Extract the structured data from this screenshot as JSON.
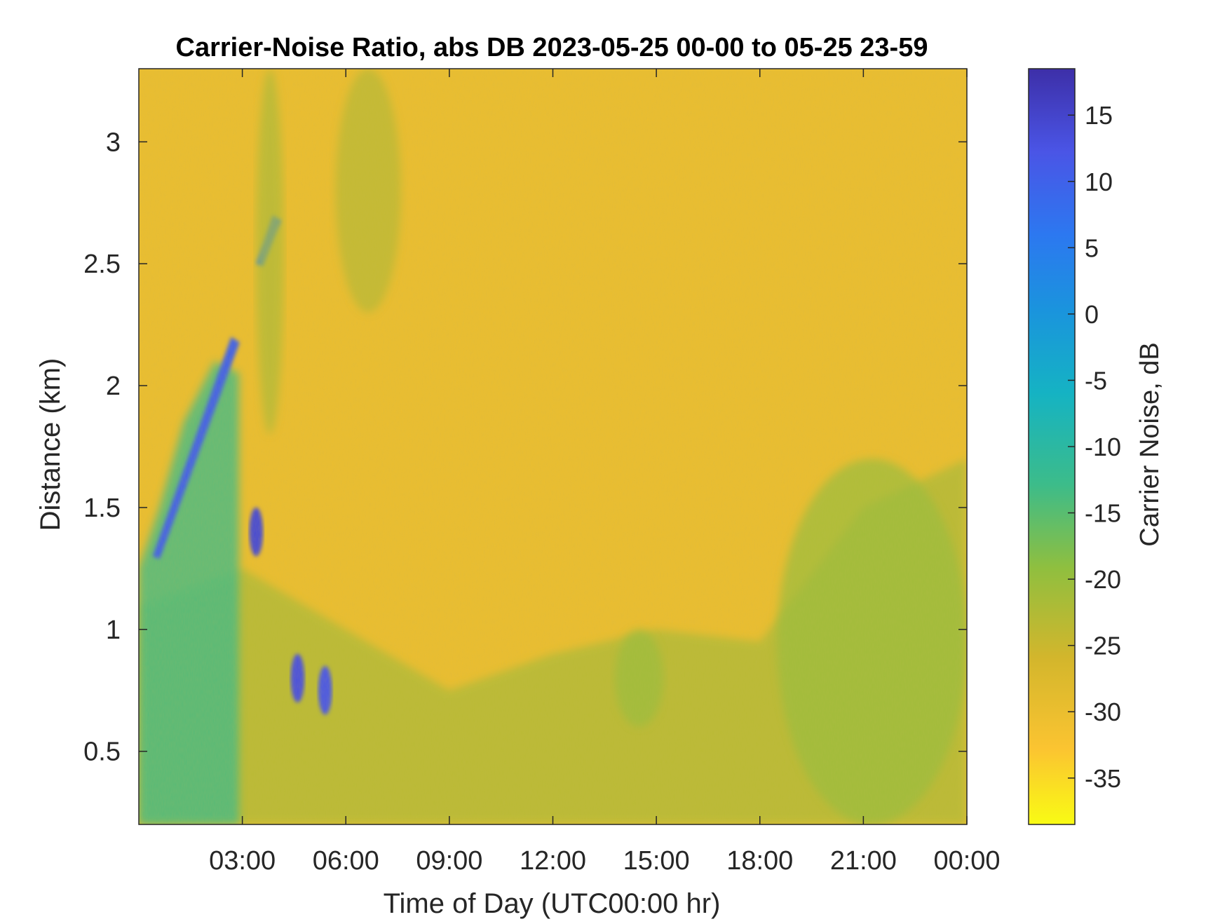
{
  "chart_data": {
    "type": "heatmap",
    "title": "Carrier-Noise Ratio, abs DB 2023-05-25 00-00 to 05-25 23-59",
    "xlabel": "Time of Day (UTC00:00 hr)",
    "ylabel": "Distance (km)",
    "colorbar_label": "Carrier Noise, dB",
    "xlim": [
      0,
      24
    ],
    "ylim": [
      0.2,
      3.3
    ],
    "clim": [
      -38.5,
      18.5
    ],
    "x_ticks": [
      {
        "value": 3,
        "label": "03:00"
      },
      {
        "value": 6,
        "label": "06:00"
      },
      {
        "value": 9,
        "label": "09:00"
      },
      {
        "value": 12,
        "label": "12:00"
      },
      {
        "value": 15,
        "label": "15:00"
      },
      {
        "value": 18,
        "label": "18:00"
      },
      {
        "value": 21,
        "label": "21:00"
      },
      {
        "value": 24,
        "label": "00:00"
      }
    ],
    "y_ticks": [
      {
        "value": 0.5,
        "label": "0.5"
      },
      {
        "value": 1,
        "label": "1"
      },
      {
        "value": 1.5,
        "label": "1.5"
      },
      {
        "value": 2,
        "label": "2"
      },
      {
        "value": 2.5,
        "label": "2.5"
      },
      {
        "value": 3,
        "label": "3"
      }
    ],
    "colorbar_ticks": [
      {
        "value": 15,
        "label": "15"
      },
      {
        "value": 10,
        "label": "10"
      },
      {
        "value": 5,
        "label": "5"
      },
      {
        "value": 0,
        "label": "0"
      },
      {
        "value": -5,
        "label": "-5"
      },
      {
        "value": -10,
        "label": "-10"
      },
      {
        "value": -15,
        "label": "-15"
      },
      {
        "value": -20,
        "label": "-20"
      },
      {
        "value": -25,
        "label": "-25"
      },
      {
        "value": -30,
        "label": "-30"
      },
      {
        "value": -35,
        "label": "-35"
      }
    ],
    "colormap": "parula (reversed)",
    "background_level": -30,
    "features": [
      {
        "type": "boundary_layer",
        "description": "near-surface lower CNR layer",
        "x": [
          0,
          24
        ],
        "y_top": [
          1.1,
          1.25,
          1.0,
          0.75,
          0.9,
          1.0,
          0.95,
          1.5,
          1.7
        ],
        "level": -22
      },
      {
        "type": "plume",
        "x": [
          0,
          3
        ],
        "y": [
          0.2,
          2.1
        ],
        "level": -13
      },
      {
        "type": "streak",
        "x": [
          0.4,
          2.8
        ],
        "y": [
          1.3,
          2.2
        ],
        "level": 10
      },
      {
        "type": "streak",
        "x": [
          3.4,
          4.0
        ],
        "y": [
          2.5,
          2.7
        ],
        "level": 6
      },
      {
        "type": "cloud",
        "x": [
          3.2,
          3.6
        ],
        "y": [
          1.3,
          1.5
        ],
        "level": 14
      },
      {
        "type": "cloud",
        "x": [
          4.4,
          4.8
        ],
        "y": [
          0.7,
          0.9
        ],
        "level": 13
      },
      {
        "type": "cloud",
        "x": [
          5.2,
          5.6
        ],
        "y": [
          0.65,
          0.85
        ],
        "level": 12
      },
      {
        "type": "column",
        "x": [
          3.4,
          4.2
        ],
        "y": [
          1.8,
          3.3
        ],
        "level": -22
      },
      {
        "type": "column",
        "x": [
          5.7,
          7.6
        ],
        "y": [
          2.3,
          3.3
        ],
        "level": -23
      },
      {
        "type": "aerosol_layer",
        "x": [
          18.5,
          24
        ],
        "y": [
          0.2,
          1.7
        ],
        "level": -20
      },
      {
        "type": "aerosol_patch",
        "x": [
          13.8,
          15.2
        ],
        "y": [
          0.6,
          1.0
        ],
        "level": -20
      }
    ]
  }
}
